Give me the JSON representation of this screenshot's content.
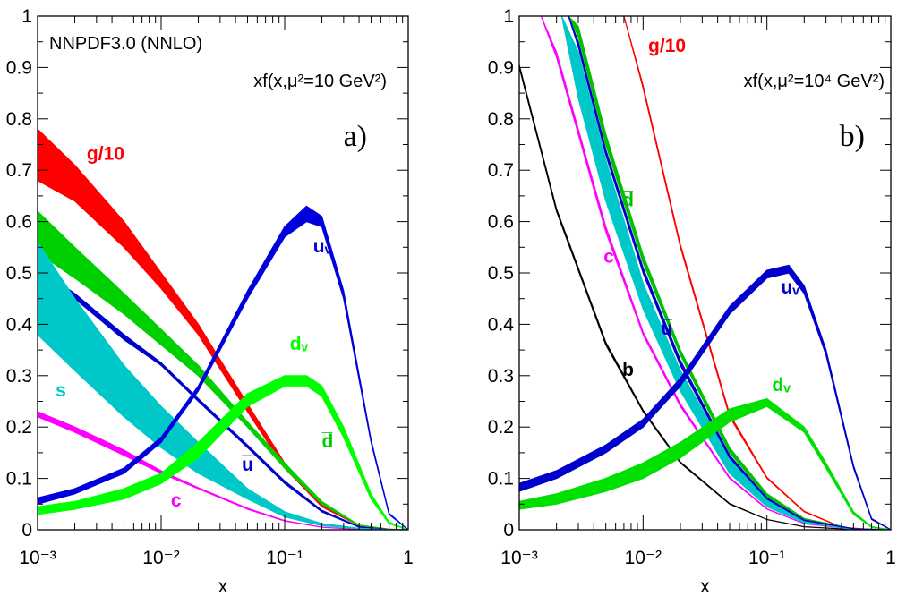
{
  "figure": {
    "panel_a": {
      "tag": "a)",
      "title": "NNPDF3.0 (NNLO)",
      "scale_label": "xf(x,μ²=10 GeV²)"
    },
    "panel_b": {
      "tag": "b)",
      "scale_label": "xf(x,μ²=10⁴ GeV²)"
    }
  },
  "chart_data": [
    {
      "type": "area",
      "panel": "a",
      "xlabel": "x",
      "ylabel": "",
      "xscale": "log",
      "xlim": [
        0.001,
        1
      ],
      "ylim": [
        0,
        1
      ],
      "x_ticks": [
        {
          "value": 0.001,
          "label": "10⁻³"
        },
        {
          "value": 0.01,
          "label": "10⁻²"
        },
        {
          "value": 0.1,
          "label": "10⁻¹"
        },
        {
          "value": 1,
          "label": "1"
        }
      ],
      "y_ticks": [
        {
          "value": 0,
          "label": "0"
        },
        {
          "value": 0.1,
          "label": "0.1"
        },
        {
          "value": 0.2,
          "label": "0.2"
        },
        {
          "value": 0.3,
          "label": "0.3"
        },
        {
          "value": 0.4,
          "label": "0.4"
        },
        {
          "value": 0.5,
          "label": "0.5"
        },
        {
          "value": 0.6,
          "label": "0.6"
        },
        {
          "value": 0.7,
          "label": "0.7"
        },
        {
          "value": 0.8,
          "label": "0.8"
        },
        {
          "value": 0.9,
          "label": "0.9"
        },
        {
          "value": 1,
          "label": "1"
        }
      ],
      "grid": false,
      "series": [
        {
          "name": "g/10",
          "color": "#ff0000",
          "label_at": [
            0.0025,
            0.72
          ],
          "x": [
            0.001,
            0.002,
            0.005,
            0.01,
            0.02,
            0.05,
            0.1,
            0.2,
            0.4,
            0.7,
            1.0
          ],
          "lower": [
            0.68,
            0.64,
            0.55,
            0.47,
            0.38,
            0.23,
            0.12,
            0.045,
            0.008,
            0.001,
            0
          ],
          "upper": [
            0.78,
            0.71,
            0.6,
            0.5,
            0.4,
            0.245,
            0.13,
            0.05,
            0.009,
            0.001,
            0
          ]
        },
        {
          "name": "d̅",
          "color": "#00d000",
          "label_at": [
            0.2,
            0.16
          ],
          "x": [
            0.001,
            0.002,
            0.005,
            0.01,
            0.02,
            0.05,
            0.1,
            0.2,
            0.4,
            0.7,
            1.0
          ],
          "lower": [
            0.54,
            0.49,
            0.42,
            0.36,
            0.3,
            0.2,
            0.12,
            0.05,
            0.008,
            0.001,
            0
          ],
          "upper": [
            0.62,
            0.55,
            0.46,
            0.39,
            0.32,
            0.21,
            0.13,
            0.055,
            0.009,
            0.001,
            0
          ]
        },
        {
          "name": "u̅",
          "color": "#0000cc",
          "label_at": [
            0.045,
            0.115
          ],
          "x": [
            0.001,
            0.002,
            0.005,
            0.01,
            0.02,
            0.05,
            0.1,
            0.2,
            0.4,
            0.7,
            1.0
          ],
          "lower": [
            0.5,
            0.45,
            0.37,
            0.32,
            0.25,
            0.16,
            0.09,
            0.035,
            0.005,
            0.0005,
            0
          ],
          "upper": [
            0.51,
            0.46,
            0.38,
            0.325,
            0.255,
            0.165,
            0.095,
            0.038,
            0.006,
            0.0005,
            0
          ]
        },
        {
          "name": "s",
          "color": "#00c8c8",
          "label_at": [
            0.0014,
            0.26
          ],
          "x": [
            0.001,
            0.002,
            0.005,
            0.01,
            0.02,
            0.05,
            0.1,
            0.2,
            0.4,
            0.7,
            1.0
          ],
          "lower": [
            0.38,
            0.31,
            0.22,
            0.16,
            0.11,
            0.06,
            0.025,
            0.008,
            0.002,
            0.0002,
            0
          ],
          "upper": [
            0.56,
            0.45,
            0.32,
            0.24,
            0.17,
            0.08,
            0.035,
            0.012,
            0.003,
            0.0003,
            0
          ]
        },
        {
          "name": "c",
          "color": "#ff00ff",
          "label_at": [
            0.012,
            0.045
          ],
          "x": [
            0.001,
            0.002,
            0.005,
            0.01,
            0.02,
            0.05,
            0.1,
            0.2,
            0.4,
            0.7,
            1.0
          ],
          "lower": [
            0.22,
            0.19,
            0.145,
            0.11,
            0.08,
            0.04,
            0.017,
            0.005,
            0.0005,
            0,
            0
          ],
          "upper": [
            0.23,
            0.2,
            0.155,
            0.115,
            0.082,
            0.042,
            0.018,
            0.005,
            0.0005,
            0,
            0
          ]
        },
        {
          "name": "dᵥ",
          "color": "#00ff00",
          "label_at": [
            0.11,
            0.35
          ],
          "x": [
            0.001,
            0.002,
            0.005,
            0.01,
            0.02,
            0.05,
            0.1,
            0.15,
            0.2,
            0.3,
            0.5,
            0.7,
            1.0
          ],
          "lower": [
            0.03,
            0.04,
            0.06,
            0.09,
            0.14,
            0.24,
            0.28,
            0.28,
            0.26,
            0.18,
            0.06,
            0.012,
            0
          ],
          "upper": [
            0.045,
            0.055,
            0.08,
            0.11,
            0.17,
            0.265,
            0.3,
            0.3,
            0.28,
            0.2,
            0.07,
            0.015,
            0
          ]
        },
        {
          "name": "uᵥ",
          "color": "#0000dd",
          "label_at": [
            0.17,
            0.54
          ],
          "x": [
            0.001,
            0.002,
            0.005,
            0.01,
            0.02,
            0.05,
            0.1,
            0.15,
            0.2,
            0.3,
            0.5,
            0.7,
            1.0
          ],
          "lower": [
            0.05,
            0.07,
            0.11,
            0.17,
            0.27,
            0.45,
            0.57,
            0.6,
            0.59,
            0.45,
            0.17,
            0.03,
            0
          ],
          "upper": [
            0.062,
            0.08,
            0.12,
            0.18,
            0.28,
            0.465,
            0.59,
            0.63,
            0.61,
            0.465,
            0.175,
            0.032,
            0
          ]
        }
      ]
    },
    {
      "type": "area",
      "panel": "b",
      "xlabel": "x",
      "ylabel": "",
      "xscale": "log",
      "xlim": [
        0.001,
        1
      ],
      "ylim": [
        0,
        1
      ],
      "x_ticks": [
        {
          "value": 0.001,
          "label": "10⁻³"
        },
        {
          "value": 0.01,
          "label": "10⁻²"
        },
        {
          "value": 0.1,
          "label": "10⁻¹"
        },
        {
          "value": 1,
          "label": "1"
        }
      ],
      "y_ticks": [
        {
          "value": 0,
          "label": "0"
        },
        {
          "value": 0.1,
          "label": "0.1"
        },
        {
          "value": 0.2,
          "label": "0.2"
        },
        {
          "value": 0.3,
          "label": "0.3"
        },
        {
          "value": 0.4,
          "label": "0.4"
        },
        {
          "value": 0.5,
          "label": "0.5"
        },
        {
          "value": 0.6,
          "label": "0.6"
        },
        {
          "value": 0.7,
          "label": "0.7"
        },
        {
          "value": 0.8,
          "label": "0.8"
        },
        {
          "value": 0.9,
          "label": "0.9"
        },
        {
          "value": 1,
          "label": "1"
        }
      ],
      "grid": false,
      "series": [
        {
          "name": "g/10",
          "color": "#ff0000",
          "label_at": [
            0.011,
            0.93
          ],
          "x": [
            0.007,
            0.01,
            0.02,
            0.05,
            0.1,
            0.2,
            0.4,
            0.7,
            1.0
          ],
          "lower": [
            1.0,
            0.86,
            0.55,
            0.22,
            0.1,
            0.035,
            0.005,
            0.0005,
            0
          ],
          "upper": [
            1.0,
            0.865,
            0.555,
            0.225,
            0.102,
            0.036,
            0.005,
            0.0005,
            0
          ]
        },
        {
          "name": "b",
          "color": "#000000",
          "label_at": [
            0.0068,
            0.3
          ],
          "x": [
            0.001,
            0.002,
            0.005,
            0.01,
            0.02,
            0.05,
            0.1,
            0.2,
            0.5,
            1.0
          ],
          "lower": [
            0.9,
            0.62,
            0.36,
            0.23,
            0.13,
            0.05,
            0.02,
            0.006,
            0.0005,
            0
          ],
          "upper": [
            0.905,
            0.625,
            0.365,
            0.233,
            0.132,
            0.051,
            0.02,
            0.006,
            0.0005,
            0
          ]
        },
        {
          "name": "c",
          "color": "#ff00ff",
          "label_at": [
            0.0048,
            0.52
          ],
          "x": [
            0.0015,
            0.002,
            0.005,
            0.01,
            0.02,
            0.05,
            0.1,
            0.2,
            0.5,
            1.0
          ],
          "lower": [
            1.0,
            0.92,
            0.58,
            0.38,
            0.24,
            0.1,
            0.04,
            0.012,
            0.001,
            0
          ],
          "upper": [
            1.0,
            0.93,
            0.59,
            0.385,
            0.245,
            0.102,
            0.041,
            0.012,
            0.001,
            0
          ]
        },
        {
          "name": "s",
          "color": "#00c8c8",
          "label_at": [
            0.0032,
            0.82
          ],
          "x": [
            0.0022,
            0.003,
            0.005,
            0.01,
            0.02,
            0.05,
            0.1,
            0.2,
            0.5,
            1.0
          ],
          "lower": [
            1.0,
            0.84,
            0.64,
            0.43,
            0.27,
            0.11,
            0.045,
            0.014,
            0.001,
            0
          ],
          "upper": [
            1.0,
            0.93,
            0.72,
            0.48,
            0.31,
            0.14,
            0.06,
            0.02,
            0.002,
            0
          ]
        },
        {
          "name": "d̅",
          "color": "#00c000",
          "label_at": [
            0.0068,
            0.63
          ],
          "x": [
            0.0025,
            0.003,
            0.005,
            0.01,
            0.02,
            0.05,
            0.1,
            0.2,
            0.5,
            1.0
          ],
          "lower": [
            1.0,
            0.96,
            0.75,
            0.52,
            0.34,
            0.15,
            0.065,
            0.02,
            0.002,
            0
          ],
          "upper": [
            1.0,
            0.98,
            0.77,
            0.535,
            0.35,
            0.16,
            0.07,
            0.022,
            0.002,
            0
          ]
        },
        {
          "name": "u̅",
          "color": "#0000cc",
          "label_at": [
            0.014,
            0.38
          ],
          "x": [
            0.0025,
            0.003,
            0.005,
            0.01,
            0.02,
            0.05,
            0.1,
            0.2,
            0.5,
            1.0
          ],
          "lower": [
            1.0,
            0.94,
            0.73,
            0.5,
            0.32,
            0.14,
            0.06,
            0.018,
            0.002,
            0
          ],
          "upper": [
            1.0,
            0.95,
            0.74,
            0.51,
            0.33,
            0.145,
            0.062,
            0.019,
            0.002,
            0
          ]
        },
        {
          "name": "dᵥ",
          "color": "#00e000",
          "label_at": [
            0.11,
            0.27
          ],
          "x": [
            0.001,
            0.002,
            0.005,
            0.01,
            0.02,
            0.05,
            0.1,
            0.2,
            0.3,
            0.5,
            0.7,
            1.0
          ],
          "lower": [
            0.04,
            0.05,
            0.075,
            0.1,
            0.14,
            0.21,
            0.24,
            0.19,
            0.12,
            0.03,
            0.005,
            0
          ],
          "upper": [
            0.055,
            0.07,
            0.1,
            0.13,
            0.17,
            0.235,
            0.255,
            0.2,
            0.13,
            0.035,
            0.006,
            0
          ]
        },
        {
          "name": "uᵥ",
          "color": "#0000cc",
          "label_at": [
            0.13,
            0.46
          ],
          "x": [
            0.001,
            0.002,
            0.005,
            0.01,
            0.02,
            0.05,
            0.1,
            0.15,
            0.2,
            0.3,
            0.5,
            0.7,
            1.0
          ],
          "lower": [
            0.075,
            0.1,
            0.15,
            0.2,
            0.28,
            0.42,
            0.49,
            0.5,
            0.46,
            0.34,
            0.12,
            0.02,
            0
          ],
          "upper": [
            0.09,
            0.115,
            0.165,
            0.215,
            0.295,
            0.435,
            0.505,
            0.515,
            0.475,
            0.35,
            0.125,
            0.022,
            0
          ]
        }
      ]
    }
  ]
}
